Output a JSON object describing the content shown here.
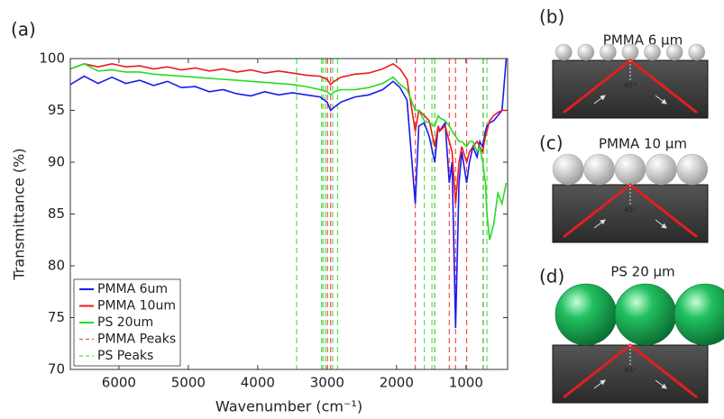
{
  "chart_data": {
    "type": "line",
    "panel_label": "(a)",
    "xlabel": "Wavenumber (cm⁻¹)",
    "ylabel": "Transmittance (%)",
    "xlim": [
      6700,
      400
    ],
    "ylim": [
      70,
      100
    ],
    "xticks": [
      6000,
      5000,
      4000,
      3000,
      2000,
      1000
    ],
    "yticks": [
      70,
      75,
      80,
      85,
      90,
      95,
      100
    ],
    "x_reversed": true,
    "x": [
      6700,
      6500,
      6300,
      6100,
      5900,
      5700,
      5500,
      5300,
      5100,
      4900,
      4700,
      4500,
      4300,
      4100,
      3900,
      3700,
      3500,
      3300,
      3100,
      3000,
      2950,
      2900,
      2800,
      2600,
      2400,
      2200,
      2050,
      1950,
      1850,
      1730,
      1680,
      1600,
      1530,
      1450,
      1400,
      1380,
      1300,
      1240,
      1200,
      1150,
      1100,
      1060,
      990,
      950,
      900,
      840,
      800,
      760,
      720,
      698,
      660,
      600,
      540,
      480,
      420
    ],
    "series": [
      {
        "name": "PMMA 6um",
        "color": "#1a1aee",
        "values": [
          97.5,
          98.3,
          97.6,
          98.2,
          97.6,
          97.9,
          97.4,
          97.8,
          97.2,
          97.3,
          96.8,
          97.0,
          96.6,
          96.4,
          96.8,
          96.5,
          96.7,
          96.5,
          96.3,
          95.8,
          95.0,
          95.3,
          95.8,
          96.3,
          96.5,
          97.0,
          97.8,
          97.2,
          96.0,
          86.0,
          93.5,
          93.8,
          92.5,
          90.0,
          93.5,
          93.0,
          93.8,
          88.0,
          90.0,
          74.0,
          88.0,
          91.0,
          88.0,
          90.0,
          91.5,
          90.5,
          92.0,
          91.5,
          93.0,
          93.5,
          93.8,
          94.0,
          94.5,
          95.0,
          100.0
        ]
      },
      {
        "name": "PMMA 10um",
        "color": "#ee1a1a",
        "values": [
          99.0,
          99.5,
          99.2,
          99.5,
          99.2,
          99.3,
          99.0,
          99.2,
          98.9,
          99.1,
          98.8,
          99.0,
          98.7,
          98.9,
          98.6,
          98.8,
          98.6,
          98.4,
          98.3,
          98.0,
          97.5,
          97.8,
          98.2,
          98.5,
          98.6,
          99.0,
          99.5,
          99.0,
          98.0,
          93.0,
          95.0,
          94.5,
          94.0,
          91.5,
          93.5,
          93.0,
          93.5,
          92.0,
          91.0,
          86.0,
          90.0,
          91.5,
          90.0,
          91.0,
          91.5,
          92.0,
          91.5,
          91.0,
          92.5,
          93.0,
          94.0,
          94.5,
          94.8,
          95.0,
          95.0
        ]
      },
      {
        "name": "PS 20um",
        "color": "#22dd22",
        "values": [
          99.0,
          99.5,
          98.8,
          98.9,
          98.7,
          98.7,
          98.5,
          98.4,
          98.3,
          98.2,
          98.1,
          98.0,
          97.9,
          97.8,
          97.7,
          97.6,
          97.5,
          97.3,
          97.0,
          96.8,
          96.5,
          96.8,
          97.0,
          97.0,
          97.2,
          97.6,
          98.2,
          97.5,
          97.0,
          95.0,
          95.0,
          94.0,
          93.8,
          93.5,
          94.5,
          94.3,
          94.0,
          93.5,
          93.0,
          92.5,
          92.0,
          92.0,
          91.5,
          92.0,
          92.0,
          91.0,
          91.5,
          90.0,
          88.0,
          85.0,
          82.5,
          84.0,
          87.0,
          86.0,
          88.0
        ]
      }
    ],
    "vlines": [
      {
        "name": "PMMA Peaks",
        "color": "#f05050",
        "values": [
          2995,
          2950,
          1730,
          1450,
          1240,
          1150,
          990,
          750
        ]
      },
      {
        "name": "PS Peaks",
        "color": "#55e055",
        "values": [
          3440,
          3080,
          3060,
          3025,
          2920,
          2850,
          1600,
          1490,
          1450,
          755,
          698
        ]
      }
    ]
  },
  "panels": [
    {
      "label": "(b)",
      "title": "PMMA 6 µm",
      "angle": "45°"
    },
    {
      "label": "(c)",
      "title": "PMMA 10 µm",
      "angle": "45°"
    },
    {
      "label": "(d)",
      "title": "PS 20 µm",
      "angle": "45°"
    }
  ]
}
